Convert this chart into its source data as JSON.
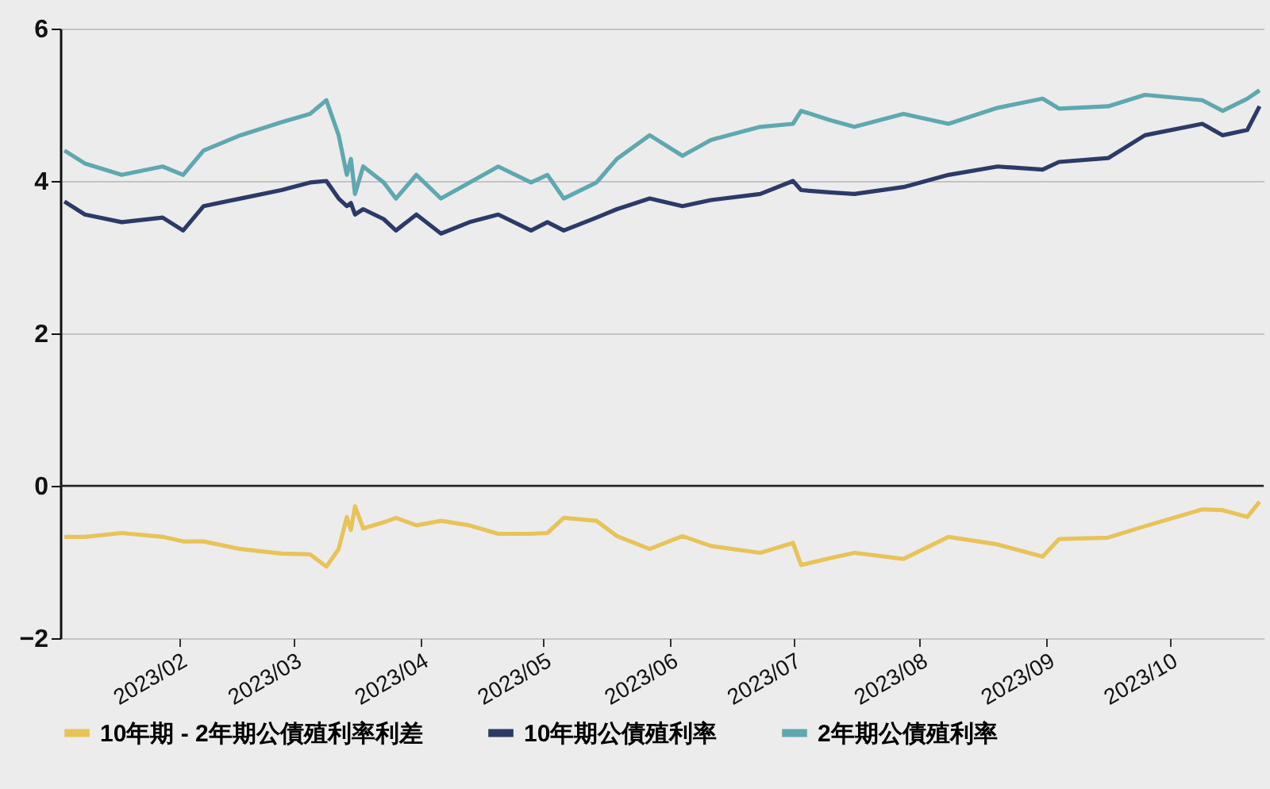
{
  "chart_data": {
    "type": "line",
    "x": [
      "2023-01-04",
      "2023-01-09",
      "2023-01-18",
      "2023-01-28",
      "2023-02-02",
      "2023-02-07",
      "2023-02-16",
      "2023-02-26",
      "2023-03-05",
      "2023-03-09",
      "2023-03-12",
      "2023-03-14",
      "2023-03-15",
      "2023-03-16",
      "2023-03-18",
      "2023-03-23",
      "2023-03-26",
      "2023-03-31",
      "2023-04-06",
      "2023-04-13",
      "2023-04-20",
      "2023-04-28",
      "2023-05-02",
      "2023-05-06",
      "2023-05-14",
      "2023-05-19",
      "2023-05-27",
      "2023-06-04",
      "2023-06-11",
      "2023-06-23",
      "2023-07-01",
      "2023-07-03",
      "2023-07-10",
      "2023-07-16",
      "2023-07-28",
      "2023-08-08",
      "2023-08-20",
      "2023-08-31",
      "2023-09-04",
      "2023-09-16",
      "2023-09-25",
      "2023-10-09",
      "2023-10-14",
      "2023-10-20",
      "2023-10-23"
    ],
    "series": [
      {
        "name": "10年期 - 2年期公債殖利率利差",
        "color": "#e8c35a",
        "values": [
          -0.67,
          -0.67,
          -0.62,
          -0.67,
          -0.73,
          -0.73,
          -0.83,
          -0.89,
          -0.9,
          -1.06,
          -0.83,
          -0.41,
          -0.58,
          -0.27,
          -0.56,
          -0.48,
          -0.42,
          -0.52,
          -0.46,
          -0.52,
          -0.63,
          -0.63,
          -0.62,
          -0.42,
          -0.46,
          -0.66,
          -0.83,
          -0.66,
          -0.79,
          -0.88,
          -0.75,
          -1.04,
          -0.95,
          -0.88,
          -0.96,
          -0.67,
          -0.77,
          -0.93,
          -0.7,
          -0.68,
          -0.53,
          -0.31,
          -0.32,
          -0.41,
          -0.21
        ]
      },
      {
        "name": "10年期公債殖利率",
        "color": "#2b3a67",
        "values": [
          3.73,
          3.56,
          3.46,
          3.52,
          3.35,
          3.67,
          3.77,
          3.88,
          3.98,
          4.0,
          3.77,
          3.67,
          3.71,
          3.56,
          3.63,
          3.5,
          3.35,
          3.56,
          3.31,
          3.46,
          3.56,
          3.35,
          3.46,
          3.35,
          3.52,
          3.63,
          3.77,
          3.67,
          3.75,
          3.83,
          4.0,
          3.88,
          3.85,
          3.83,
          3.92,
          4.08,
          4.19,
          4.15,
          4.25,
          4.3,
          4.6,
          4.75,
          4.6,
          4.67,
          4.98
        ]
      },
      {
        "name": "2年期公債殖利率",
        "color": "#5fa8b0",
        "values": [
          4.4,
          4.23,
          4.08,
          4.19,
          4.08,
          4.4,
          4.6,
          4.77,
          4.88,
          5.06,
          4.6,
          4.08,
          4.29,
          3.83,
          4.19,
          3.98,
          3.77,
          4.08,
          3.77,
          3.98,
          4.19,
          3.98,
          4.08,
          3.77,
          3.98,
          4.29,
          4.6,
          4.33,
          4.54,
          4.71,
          4.75,
          4.92,
          4.8,
          4.71,
          4.88,
          4.75,
          4.96,
          5.08,
          4.95,
          4.98,
          5.13,
          5.06,
          4.92,
          5.08,
          5.19
        ]
      }
    ],
    "xlim": [
      "2023-01-03",
      "2023-10-24"
    ],
    "xticks": [
      {
        "value": "2023-02-01",
        "label": "2023/02"
      },
      {
        "value": "2023-03-01",
        "label": "2023/03"
      },
      {
        "value": "2023-04-01",
        "label": "2023/04"
      },
      {
        "value": "2023-05-01",
        "label": "2023/05"
      },
      {
        "value": "2023-06-01",
        "label": "2023/06"
      },
      {
        "value": "2023-07-01",
        "label": "2023/07"
      },
      {
        "value": "2023-08-01",
        "label": "2023/08"
      },
      {
        "value": "2023-09-01",
        "label": "2023/09"
      },
      {
        "value": "2023-10-01",
        "label": "2023/10"
      }
    ],
    "ylim": [
      -2,
      6
    ],
    "yticks": [
      -2,
      0,
      2,
      4,
      6
    ],
    "ref_lines": [
      {
        "axis": "y",
        "value": 0,
        "color": "#222222"
      }
    ],
    "grid": "y",
    "legend": "bottom",
    "marker": "none",
    "line_style": "solid"
  }
}
